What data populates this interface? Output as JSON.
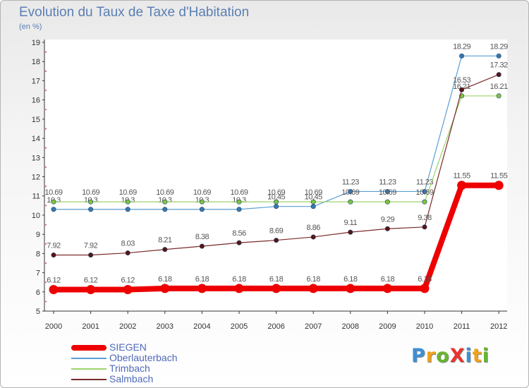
{
  "title": "Evolution du Taux de Taxe d'Habitation",
  "subtitle": "(en %)",
  "logo": {
    "text": "ProXiti",
    "letters": [
      {
        "ch": "P",
        "color": "#3d8fd6"
      },
      {
        "ch": "r",
        "color": "#f0a21b"
      },
      {
        "ch": "o",
        "color": "#67b531"
      },
      {
        "ch": "X",
        "color": "#e8332f"
      },
      {
        "ch": "i",
        "color": "#3d8fd6"
      },
      {
        "ch": "t",
        "color": "#f0a21b"
      },
      {
        "ch": "i",
        "color": "#67b531"
      }
    ]
  },
  "chart_data": {
    "type": "line",
    "title": "Evolution du Taux de Taxe d'Habitation",
    "ylabel": "(en %)",
    "xlabel": "",
    "x": [
      "2000",
      "2001",
      "2002",
      "2003",
      "2004",
      "2005",
      "2006",
      "2007",
      "2008",
      "2009",
      "2010",
      "2011",
      "2012"
    ],
    "ylim": [
      5,
      19
    ],
    "yticks": [
      5,
      6,
      7,
      8,
      9,
      10,
      11,
      12,
      13,
      14,
      15,
      16,
      17,
      18,
      19
    ],
    "grid": false,
    "legend_position": "bottom-left",
    "series": [
      {
        "name": "Oberlauterbach",
        "color": "#5a9fd4",
        "marker": "#3a78b0",
        "width": 1.2,
        "values": [
          10.3,
          10.3,
          10.3,
          10.3,
          10.3,
          10.3,
          10.45,
          10.45,
          11.23,
          11.23,
          11.23,
          18.29,
          18.29
        ],
        "labels": [
          "10.3",
          "10.3",
          "10.3",
          "10.3",
          "10.3",
          "10.3",
          "10.45",
          "10.45",
          "11.23",
          "11.23",
          "11.23",
          "18.29",
          "18.29"
        ]
      },
      {
        "name": "Trimbach",
        "color": "#9ed36b",
        "marker": "#7ec441",
        "width": 1.2,
        "values": [
          10.69,
          10.69,
          10.69,
          10.69,
          10.69,
          10.69,
          10.69,
          10.69,
          10.69,
          10.69,
          10.69,
          16.21,
          16.21
        ],
        "labels": [
          "10.69",
          "10.69",
          "10.69",
          "10.69",
          "10.69",
          "10.69",
          "10.69",
          "10.69",
          "10.69",
          "10.69",
          "10.69",
          "16.21",
          "16.21"
        ]
      },
      {
        "name": "Salmbach",
        "color": "#7a2a2a",
        "marker": "#5a1414",
        "width": 1.2,
        "values": [
          7.92,
          7.92,
          8.03,
          8.21,
          8.38,
          8.56,
          8.69,
          8.86,
          9.11,
          9.29,
          9.38,
          16.53,
          17.32
        ],
        "labels": [
          "7.92",
          "7.92",
          "8.03",
          "8.21",
          "8.38",
          "8.56",
          "8.69",
          "8.86",
          "9.11",
          "9.29",
          "9.38",
          "16.53",
          "17.32"
        ]
      },
      {
        "name": "SIEGEN",
        "color": "#ee0000",
        "marker": "#ee0000",
        "width": 8,
        "values": [
          6.12,
          6.12,
          6.12,
          6.18,
          6.18,
          6.18,
          6.18,
          6.18,
          6.18,
          6.18,
          6.18,
          11.55,
          11.55
        ],
        "labels": [
          "6.12",
          "6.12",
          "6.12",
          "6.18",
          "6.18",
          "6.18",
          "6.18",
          "6.18",
          "6.18",
          "6.18",
          "6.18",
          "11.55",
          "11.55"
        ]
      }
    ]
  },
  "legend": [
    {
      "label": "SIEGEN",
      "color": "#ee0000",
      "thick": true
    },
    {
      "label": "Oberlauterbach",
      "color": "#5a9fd4",
      "thick": false
    },
    {
      "label": "Trimbach",
      "color": "#9ed36b",
      "thick": false
    },
    {
      "label": "Salmbach",
      "color": "#7a2a2a",
      "thick": false
    }
  ]
}
